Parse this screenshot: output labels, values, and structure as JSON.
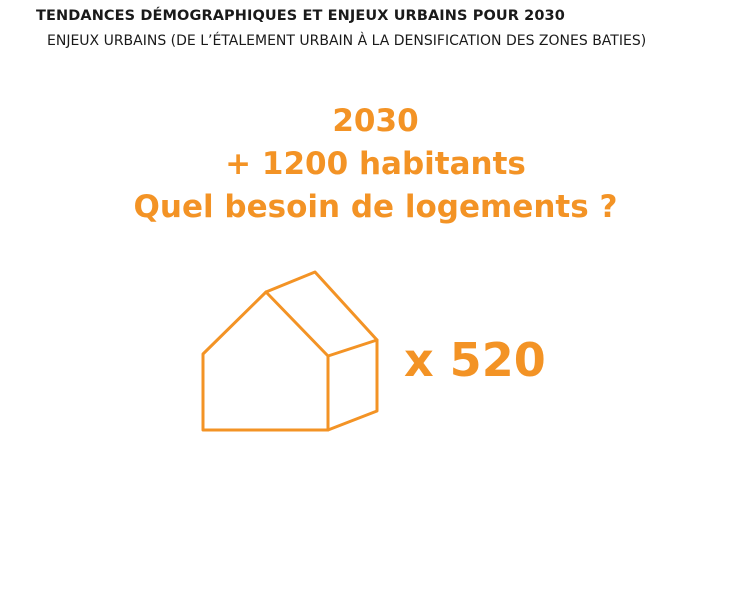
{
  "header": {
    "title": "TENDANCES DÉMOGRAPHIQUES ET ENJEUX URBAINS POUR 2030",
    "subtitle": "ENJEUX URBAINS (DE L’ÉTALEMENT URBAIN À LA DENSIFICATION DES ZONES BATIES)"
  },
  "headline": {
    "year": "2030",
    "population": "+ 1200 habitants",
    "question": "Quel besoin de logements ?"
  },
  "housing": {
    "icon": "house-icon",
    "count_label": "x 520"
  },
  "colors": {
    "accent": "#f39325",
    "text": "#1a1a1a",
    "background": "#ffffff"
  }
}
